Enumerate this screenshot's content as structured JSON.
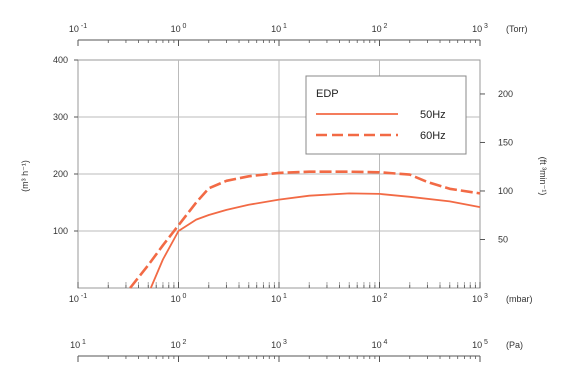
{
  "chart_data": {
    "type": "line",
    "x_scale": "log",
    "xlim": [
      0.1,
      1000
    ],
    "ylim_left": [
      0,
      400
    ],
    "ylim_right": [
      0,
      235
    ],
    "grid": true,
    "legend_position": "top-right",
    "legend_title": "EDP",
    "ylabel_left": "(m³ h⁻¹)",
    "ylabel_right": "(ft ³min⁻¹)",
    "left_ticks": [
      "100",
      "200",
      "300",
      "400"
    ],
    "left_tick_values": [
      100,
      200,
      300,
      400
    ],
    "right_ticks": [
      "50",
      "100",
      "150",
      "200"
    ],
    "right_tick_values": [
      50,
      100,
      150,
      200
    ],
    "axes": [
      {
        "unit": "(Torr)",
        "position": "top",
        "lim": [
          0.1,
          1000
        ],
        "ticks": [
          {
            "base": "10",
            "exp": "-1"
          },
          {
            "base": "10",
            "exp": "0"
          },
          {
            "base": "10",
            "exp": "1"
          },
          {
            "base": "10",
            "exp": "2"
          },
          {
            "base": "10",
            "exp": "3"
          }
        ]
      },
      {
        "unit": "(mbar)",
        "position": "bottom",
        "lim": [
          0.1,
          1000
        ],
        "ticks": [
          {
            "base": "10",
            "exp": "-1"
          },
          {
            "base": "10",
            "exp": "0"
          },
          {
            "base": "10",
            "exp": "1"
          },
          {
            "base": "10",
            "exp": "2"
          },
          {
            "base": "10",
            "exp": "3"
          }
        ]
      },
      {
        "unit": "(Pa)",
        "position": "bottom-secondary",
        "lim": [
          10,
          100000
        ],
        "ticks": [
          {
            "base": "10",
            "exp": "1"
          },
          {
            "base": "10",
            "exp": "2"
          },
          {
            "base": "10",
            "exp": "3"
          },
          {
            "base": "10",
            "exp": "4"
          },
          {
            "base": "10",
            "exp": "5"
          }
        ]
      }
    ],
    "series": [
      {
        "name": "50Hz",
        "style": "solid",
        "color": "#f26a45",
        "x": [
          0.53,
          0.7,
          1.0,
          1.5,
          2,
          3,
          5,
          10,
          20,
          50,
          100,
          200,
          500,
          1000
        ],
        "y": [
          0,
          50,
          100,
          120,
          128,
          137,
          146,
          155,
          162,
          166,
          165,
          160,
          152,
          142
        ]
      },
      {
        "name": "60Hz",
        "style": "dashed",
        "color": "#f26a45",
        "x": [
          0.33,
          0.5,
          0.7,
          1.0,
          1.5,
          2,
          3,
          5,
          10,
          20,
          50,
          100,
          200,
          300,
          500,
          1000
        ],
        "y": [
          0,
          40,
          75,
          110,
          150,
          175,
          188,
          196,
          202,
          204,
          204,
          203,
          199,
          186,
          174,
          166
        ]
      }
    ]
  }
}
